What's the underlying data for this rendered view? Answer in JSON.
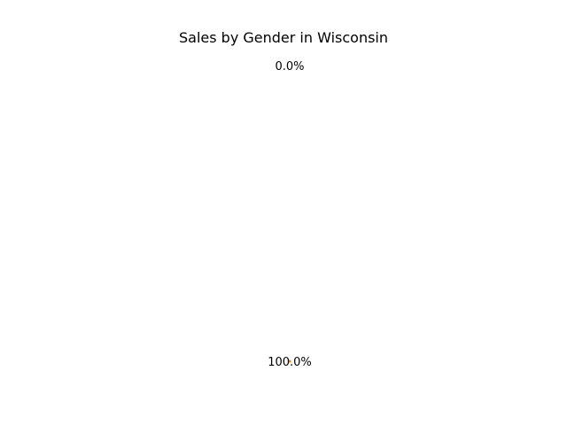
{
  "chart_data": {
    "type": "pie",
    "title": "Sales by Gender in Wisconsin",
    "slices": [
      {
        "value": 0.0,
        "label": "0.0%",
        "color": "#1f77b4"
      },
      {
        "value": 100.0,
        "label": "100.0%",
        "color": "#ff7f0e"
      }
    ]
  }
}
